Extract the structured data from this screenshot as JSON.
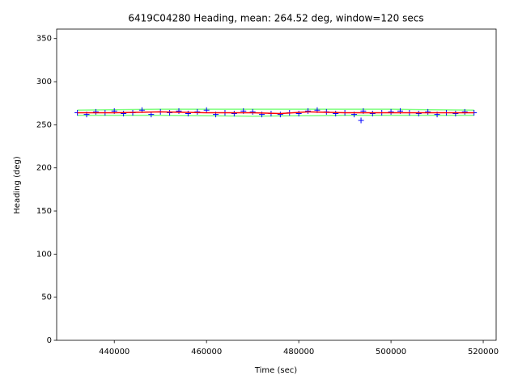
{
  "chart_data": {
    "type": "scatter",
    "title": "6419C04280 Heading, mean: 264.52 deg, window=120 secs",
    "xlabel": "Time (sec)",
    "ylabel": "Heading (deg)",
    "xlim": [
      427500,
      522800
    ],
    "ylim": [
      0,
      361
    ],
    "xticks": [
      440000,
      460000,
      480000,
      500000,
      520000
    ],
    "yticks": [
      0,
      50,
      100,
      150,
      200,
      250,
      300,
      350
    ],
    "series": [
      {
        "color": "#0000ff",
        "style": "marker",
        "x": [
          432000,
          434000,
          436000,
          438000,
          440000,
          442000,
          444000,
          446000,
          448000,
          450000,
          452000,
          454000,
          456000,
          458000,
          460000,
          462000,
          464000,
          466000,
          468000,
          470000,
          472000,
          474000,
          476000,
          478000,
          480000,
          482000,
          484000,
          486000,
          488000,
          490000,
          492000,
          493500,
          494000,
          496000,
          498000,
          500000,
          502000,
          504000,
          506000,
          508000,
          510000,
          512000,
          514000,
          516000,
          518000
        ],
        "values": [
          264,
          262,
          265,
          264,
          266,
          263,
          264,
          267,
          262,
          265,
          264,
          266,
          263,
          265,
          267,
          262,
          264,
          263,
          266,
          265,
          262,
          263,
          262,
          264,
          263,
          266,
          267,
          265,
          263,
          264,
          262,
          255,
          266,
          263,
          264,
          265,
          266,
          264,
          263,
          265,
          262,
          264,
          263,
          265,
          264
        ]
      },
      {
        "color": "#ff0000",
        "style": "line",
        "x": [
          432000,
          440000,
          450000,
          460000,
          470000,
          476000,
          482000,
          490000,
          494000,
          500000,
          510000,
          518000
        ],
        "values": [
          264,
          264,
          265,
          264,
          264,
          263,
          265,
          264,
          264,
          264,
          264,
          264
        ]
      },
      {
        "color": "#7fff7f",
        "style": "line",
        "x": [
          432000,
          450000,
          470000,
          490000,
          500000,
          518000
        ],
        "values": [
          267,
          268,
          268,
          268,
          268,
          267
        ]
      },
      {
        "color": "#7fff7f",
        "style": "line",
        "x": [
          432000,
          450000,
          470000,
          490000,
          500000,
          518000
        ],
        "values": [
          261,
          261,
          260,
          261,
          261,
          261
        ]
      }
    ]
  }
}
